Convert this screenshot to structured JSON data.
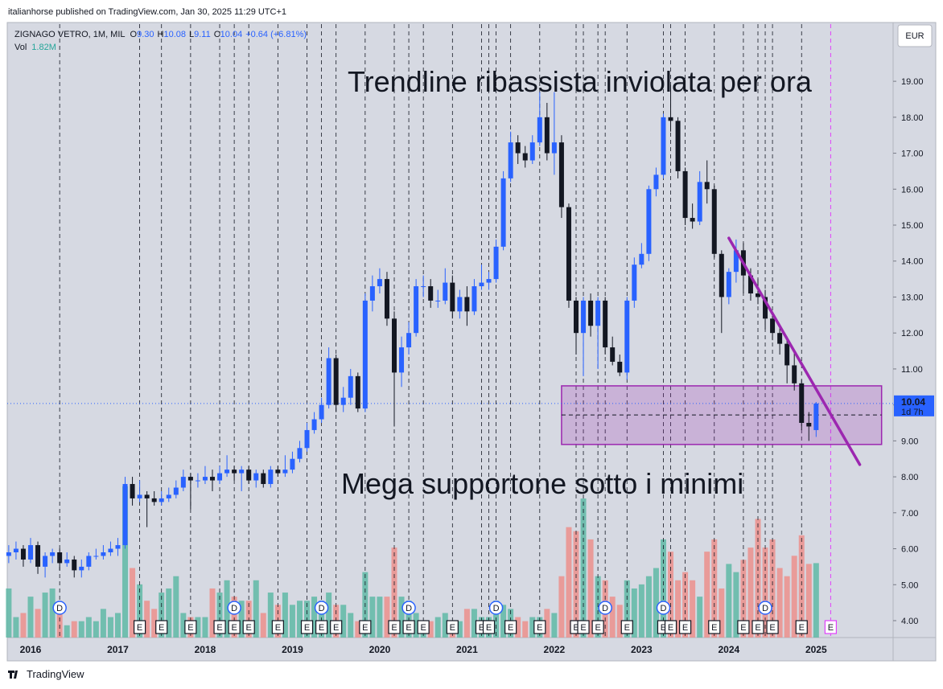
{
  "header": {
    "publisher": "italianhorse published on TradingView.com, Jan 30, 2025 11:29 UTC+1",
    "footer": "TradingView"
  },
  "chart_data": {
    "type": "candlestick",
    "symbol": "ZIGNAGO VETRO, 1M, MIL",
    "ohlc_keys": [
      "O",
      "H",
      "L",
      "C"
    ],
    "ohlc_labels": [
      "9.30",
      "10.08",
      "9.11",
      "10.04"
    ],
    "change_label": "+0.64 (+6.81%)",
    "volume_key": "Vol",
    "volume_label": "1.82M",
    "currency": "EUR",
    "countdown": "1d 7h",
    "annotations": [
      "Trendline ribassista inviolata per ora",
      "Mega supportone sotto i minimi"
    ],
    "up_color": "#2962ff",
    "down_color": "#131722",
    "volume_up_color": "#5fb8a6",
    "volume_down_color": "#ec8f8c",
    "trendline_color": "#9c27b0",
    "box_color": "#9c27b0",
    "annotation_color": "#f23645",
    "ylim": [
      3.53,
      20.59
    ],
    "yticks": [
      {
        "value": 4,
        "label": "4.00"
      },
      {
        "value": 5,
        "label": "5.00"
      },
      {
        "value": 6,
        "label": "6.00"
      },
      {
        "value": 7,
        "label": "7.00"
      },
      {
        "value": 8,
        "label": "8.00"
      },
      {
        "value": 9,
        "label": "9.00"
      },
      {
        "value": 10,
        "label": "10.00"
      },
      {
        "value": 11,
        "label": "11.00"
      },
      {
        "value": 12,
        "label": "12.00"
      },
      {
        "value": 13,
        "label": "13.00"
      },
      {
        "value": 14,
        "label": "14.00"
      },
      {
        "value": 15,
        "label": "15.00"
      },
      {
        "value": 16,
        "label": "16.00"
      },
      {
        "value": 17,
        "label": "17.00"
      },
      {
        "value": 18,
        "label": "18.00"
      },
      {
        "value": 19,
        "label": "19.00"
      }
    ],
    "vlim": [
      0,
      15
    ],
    "categories": [
      null,
      null,
      null,
      "2016",
      null,
      null,
      null,
      null,
      null,
      null,
      null,
      null,
      null,
      null,
      null,
      "2017",
      null,
      null,
      null,
      null,
      null,
      null,
      null,
      null,
      null,
      null,
      null,
      "2018",
      null,
      null,
      null,
      null,
      null,
      null,
      null,
      null,
      null,
      null,
      null,
      "2019",
      null,
      null,
      null,
      null,
      null,
      null,
      null,
      null,
      null,
      null,
      null,
      "2020",
      null,
      null,
      null,
      null,
      null,
      null,
      null,
      null,
      null,
      null,
      null,
      "2021",
      null,
      null,
      null,
      null,
      null,
      null,
      null,
      null,
      null,
      null,
      null,
      "2022",
      null,
      null,
      null,
      null,
      null,
      null,
      null,
      null,
      null,
      null,
      null,
      "2023",
      null,
      null,
      null,
      null,
      null,
      null,
      null,
      null,
      null,
      null,
      null,
      "2024",
      null,
      null,
      null,
      null,
      null,
      null,
      null,
      null,
      null,
      null,
      null,
      "2025"
    ],
    "candles": [
      [
        5.8,
        6.1,
        5.6,
        5.9
      ],
      [
        5.9,
        6.2,
        5.7,
        6.0
      ],
      [
        6.0,
        6.1,
        5.5,
        5.7
      ],
      [
        5.7,
        6.3,
        5.6,
        6.1
      ],
      [
        6.1,
        6.2,
        5.3,
        5.5
      ],
      [
        5.5,
        5.9,
        5.2,
        5.8
      ],
      [
        5.8,
        6.0,
        5.6,
        5.9
      ],
      [
        5.9,
        6.0,
        5.4,
        5.6
      ],
      [
        5.6,
        5.9,
        5.5,
        5.7
      ],
      [
        5.7,
        5.8,
        5.2,
        5.4
      ],
      [
        5.4,
        5.7,
        5.2,
        5.5
      ],
      [
        5.5,
        5.9,
        5.4,
        5.8
      ],
      [
        5.8,
        6.0,
        5.7,
        5.8
      ],
      [
        5.8,
        6.1,
        5.7,
        5.9
      ],
      [
        5.9,
        6.2,
        5.8,
        6.0
      ],
      [
        6.0,
        6.3,
        5.8,
        6.1
      ],
      [
        6.1,
        8.0,
        6.0,
        7.8
      ],
      [
        7.8,
        8.0,
        7.2,
        7.4
      ],
      [
        7.4,
        7.9,
        7.3,
        7.5
      ],
      [
        7.5,
        7.6,
        6.6,
        7.4
      ],
      [
        7.4,
        7.6,
        7.2,
        7.3
      ],
      [
        7.3,
        7.6,
        7.2,
        7.4
      ],
      [
        7.4,
        7.7,
        7.3,
        7.5
      ],
      [
        7.5,
        7.9,
        7.4,
        7.7
      ],
      [
        7.7,
        8.2,
        7.6,
        8.0
      ],
      [
        8.0,
        8.1,
        7.1,
        7.9
      ],
      [
        7.9,
        8.1,
        7.7,
        7.9
      ],
      [
        7.9,
        8.3,
        7.8,
        8.0
      ],
      [
        8.0,
        8.2,
        7.6,
        7.9
      ],
      [
        7.9,
        8.3,
        7.8,
        8.1
      ],
      [
        8.1,
        8.6,
        8.0,
        8.2
      ],
      [
        8.2,
        8.3,
        7.9,
        8.1
      ],
      [
        8.1,
        8.3,
        7.6,
        8.2
      ],
      [
        8.2,
        8.3,
        7.8,
        7.9
      ],
      [
        7.9,
        8.2,
        7.7,
        8.1
      ],
      [
        8.1,
        8.2,
        7.7,
        7.8
      ],
      [
        7.8,
        8.3,
        7.7,
        8.2
      ],
      [
        8.2,
        8.3,
        8.0,
        8.1
      ],
      [
        8.1,
        8.6,
        8.0,
        8.2
      ],
      [
        8.2,
        8.7,
        8.1,
        8.5
      ],
      [
        8.5,
        9.0,
        8.4,
        8.8
      ],
      [
        8.8,
        9.5,
        8.7,
        9.3
      ],
      [
        9.3,
        9.8,
        9.2,
        9.6
      ],
      [
        9.6,
        10.2,
        9.5,
        10.0
      ],
      [
        10.0,
        11.6,
        9.9,
        11.3
      ],
      [
        11.3,
        11.4,
        9.8,
        10.0
      ],
      [
        10.0,
        10.5,
        9.8,
        10.2
      ],
      [
        10.2,
        11.0,
        10.0,
        10.8
      ],
      [
        10.8,
        10.9,
        9.8,
        9.9
      ],
      [
        9.9,
        13.1,
        9.8,
        12.9
      ],
      [
        12.9,
        13.6,
        12.6,
        13.3
      ],
      [
        13.3,
        13.8,
        13.1,
        13.5
      ],
      [
        13.5,
        13.7,
        12.2,
        12.4
      ],
      [
        12.4,
        12.6,
        9.4,
        10.9
      ],
      [
        10.9,
        11.9,
        10.5,
        11.6
      ],
      [
        11.6,
        12.3,
        11.4,
        12.0
      ],
      [
        12.0,
        13.5,
        11.9,
        13.3
      ],
      [
        13.3,
        13.6,
        13.0,
        13.3
      ],
      [
        13.3,
        13.5,
        12.7,
        12.9
      ],
      [
        12.9,
        13.2,
        12.7,
        12.9
      ],
      [
        12.9,
        13.8,
        12.8,
        13.4
      ],
      [
        13.4,
        13.6,
        12.4,
        12.6
      ],
      [
        12.6,
        13.2,
        12.4,
        13.0
      ],
      [
        13.0,
        13.3,
        12.2,
        12.6
      ],
      [
        12.6,
        13.5,
        12.5,
        13.3
      ],
      [
        13.3,
        13.9,
        13.2,
        13.4
      ],
      [
        13.4,
        13.7,
        13.2,
        13.5
      ],
      [
        13.5,
        14.6,
        13.4,
        14.4
      ],
      [
        14.4,
        16.5,
        14.3,
        16.3
      ],
      [
        16.3,
        17.6,
        16.2,
        17.3
      ],
      [
        17.3,
        17.5,
        16.7,
        17.0
      ],
      [
        17.0,
        17.2,
        16.6,
        16.8
      ],
      [
        16.8,
        17.5,
        16.7,
        17.3
      ],
      [
        17.3,
        18.7,
        17.2,
        18.0
      ],
      [
        18.0,
        18.4,
        16.8,
        17.0
      ],
      [
        17.0,
        18.7,
        16.4,
        17.3
      ],
      [
        17.3,
        17.5,
        15.2,
        15.5
      ],
      [
        15.5,
        15.6,
        12.7,
        12.9
      ],
      [
        12.9,
        13.0,
        11.4,
        12.0
      ],
      [
        12.0,
        13.0,
        10.8,
        12.9
      ],
      [
        12.9,
        13.1,
        11.9,
        12.2
      ],
      [
        12.2,
        13.0,
        11.0,
        12.9
      ],
      [
        12.9,
        13.0,
        11.4,
        11.6
      ],
      [
        11.6,
        11.9,
        11.1,
        11.2
      ],
      [
        11.2,
        11.4,
        10.8,
        10.9
      ],
      [
        10.9,
        13.0,
        10.7,
        12.9
      ],
      [
        12.9,
        14.1,
        12.7,
        13.9
      ],
      [
        13.9,
        14.5,
        13.8,
        14.2
      ],
      [
        14.2,
        16.1,
        14.0,
        16.0
      ],
      [
        16.0,
        16.6,
        15.8,
        16.4
      ],
      [
        16.4,
        18.1,
        16.3,
        18.0
      ],
      [
        18.0,
        18.9,
        17.6,
        17.9
      ],
      [
        17.9,
        18.0,
        16.3,
        16.5
      ],
      [
        16.5,
        16.6,
        15.0,
        15.2
      ],
      [
        15.2,
        15.6,
        14.9,
        15.1
      ],
      [
        15.1,
        16.5,
        15.0,
        16.2
      ],
      [
        16.2,
        16.8,
        15.6,
        16.0
      ],
      [
        16.0,
        16.1,
        14.1,
        14.2
      ],
      [
        14.2,
        14.3,
        12.0,
        13.0
      ],
      [
        13.0,
        13.8,
        12.8,
        13.7
      ],
      [
        13.7,
        14.6,
        13.4,
        14.3
      ],
      [
        14.3,
        14.5,
        13.1,
        13.6
      ],
      [
        13.6,
        13.8,
        12.9,
        13.1
      ],
      [
        13.1,
        13.5,
        12.8,
        13.0
      ],
      [
        13.0,
        13.2,
        12.1,
        12.4
      ],
      [
        12.4,
        12.6,
        11.8,
        12.0
      ],
      [
        12.0,
        12.2,
        11.4,
        11.7
      ],
      [
        11.7,
        11.9,
        10.6,
        11.1
      ],
      [
        11.1,
        11.5,
        10.4,
        10.6
      ],
      [
        10.6,
        10.7,
        9.3,
        9.5
      ],
      [
        9.5,
        9.8,
        9.0,
        9.4
      ],
      [
        9.3,
        10.08,
        9.11,
        10.04
      ]
    ],
    "volumes": [
      1.2,
      0.5,
      0.6,
      1.0,
      0.7,
      1.1,
      1.2,
      0.8,
      0.3,
      0.4,
      0.4,
      0.5,
      0.4,
      0.7,
      0.5,
      0.6,
      3.7,
      1.7,
      1.3,
      0.9,
      0.7,
      1.1,
      1.2,
      1.5,
      0.6,
      0.5,
      0.5,
      0.5,
      1.2,
      1.1,
      1.4,
      1.0,
      0.9,
      0.9,
      1.4,
      0.6,
      1.1,
      0.8,
      1.1,
      0.8,
      0.9,
      0.9,
      1.0,
      0.9,
      1.1,
      0.8,
      0.8,
      0.6,
      0.4,
      1.6,
      1.0,
      1.0,
      1.0,
      2.2,
      1.0,
      0.9,
      0.6,
      0.4,
      0.4,
      0.5,
      0.6,
      0.4,
      0.4,
      0.7,
      0.7,
      0.5,
      0.5,
      0.9,
      0.8,
      0.7,
      0.5,
      0.4,
      0.5,
      0.5,
      0.7,
      0.6,
      1.5,
      2.7,
      2.6,
      3.4,
      2.4,
      1.5,
      1.4,
      1.0,
      0.8,
      1.4,
      1.2,
      1.3,
      1.5,
      1.7,
      2.4,
      2.1,
      1.4,
      1.6,
      1.4,
      1.0,
      2.1,
      2.4,
      1.2,
      1.8,
      1.6,
      1.9,
      2.2,
      2.9,
      2.2,
      2.4,
      1.7,
      1.5,
      2.0,
      2.5,
      1.8,
      1.82
    ],
    "earnings": [
      null,
      null,
      null,
      null,
      null,
      null,
      null,
      null,
      null,
      null,
      null,
      null,
      null,
      null,
      null,
      null,
      null,
      null,
      "E",
      null,
      null,
      "E",
      null,
      null,
      null,
      "E",
      null,
      null,
      null,
      "E",
      null,
      "E",
      null,
      "E",
      null,
      null,
      null,
      "E",
      null,
      null,
      null,
      "E",
      null,
      "E",
      null,
      "E",
      null,
      null,
      null,
      "E",
      null,
      null,
      null,
      "E",
      null,
      "E",
      null,
      "E",
      null,
      null,
      null,
      "E",
      null,
      null,
      null,
      "E",
      "E",
      null,
      null,
      "E",
      null,
      null,
      null,
      "E",
      null,
      null,
      null,
      null,
      "E",
      "E",
      null,
      "E",
      null,
      null,
      null,
      "E",
      null,
      null,
      null,
      null,
      "E",
      "E",
      null,
      "E",
      null,
      null,
      null,
      "E",
      null,
      null,
      null,
      "E",
      null,
      "E",
      null,
      "E",
      null,
      null,
      null,
      "E",
      null,
      null
    ],
    "dividends": [
      null,
      null,
      null,
      null,
      null,
      null,
      null,
      "D",
      null,
      null,
      null,
      null,
      null,
      null,
      null,
      null,
      null,
      null,
      null,
      null,
      null,
      null,
      null,
      null,
      null,
      null,
      null,
      null,
      null,
      null,
      null,
      "D",
      null,
      null,
      null,
      null,
      null,
      null,
      null,
      null,
      null,
      null,
      null,
      "D",
      null,
      null,
      null,
      null,
      null,
      null,
      null,
      null,
      null,
      null,
      null,
      "D",
      null,
      null,
      null,
      null,
      null,
      null,
      null,
      null,
      null,
      null,
      null,
      "D",
      null,
      null,
      null,
      null,
      null,
      null,
      null,
      null,
      null,
      null,
      null,
      null,
      null,
      null,
      "D",
      null,
      null,
      null,
      null,
      null,
      null,
      null,
      "D",
      null,
      null,
      null,
      null,
      null,
      null,
      null,
      null,
      null,
      null,
      null,
      null,
      null,
      "D",
      null,
      null,
      null,
      null,
      null,
      null,
      null,
      null
    ],
    "upcoming_marker": {
      "label": "E",
      "index": 113
    },
    "trendline": {
      "start": [
        99,
        14.64
      ],
      "end": [
        117,
        8.34
      ]
    },
    "support_box": {
      "x": [
        76,
        120
      ],
      "top": 10.53,
      "bottom": 8.9,
      "mid": 9.72
    },
    "grid": false
  }
}
